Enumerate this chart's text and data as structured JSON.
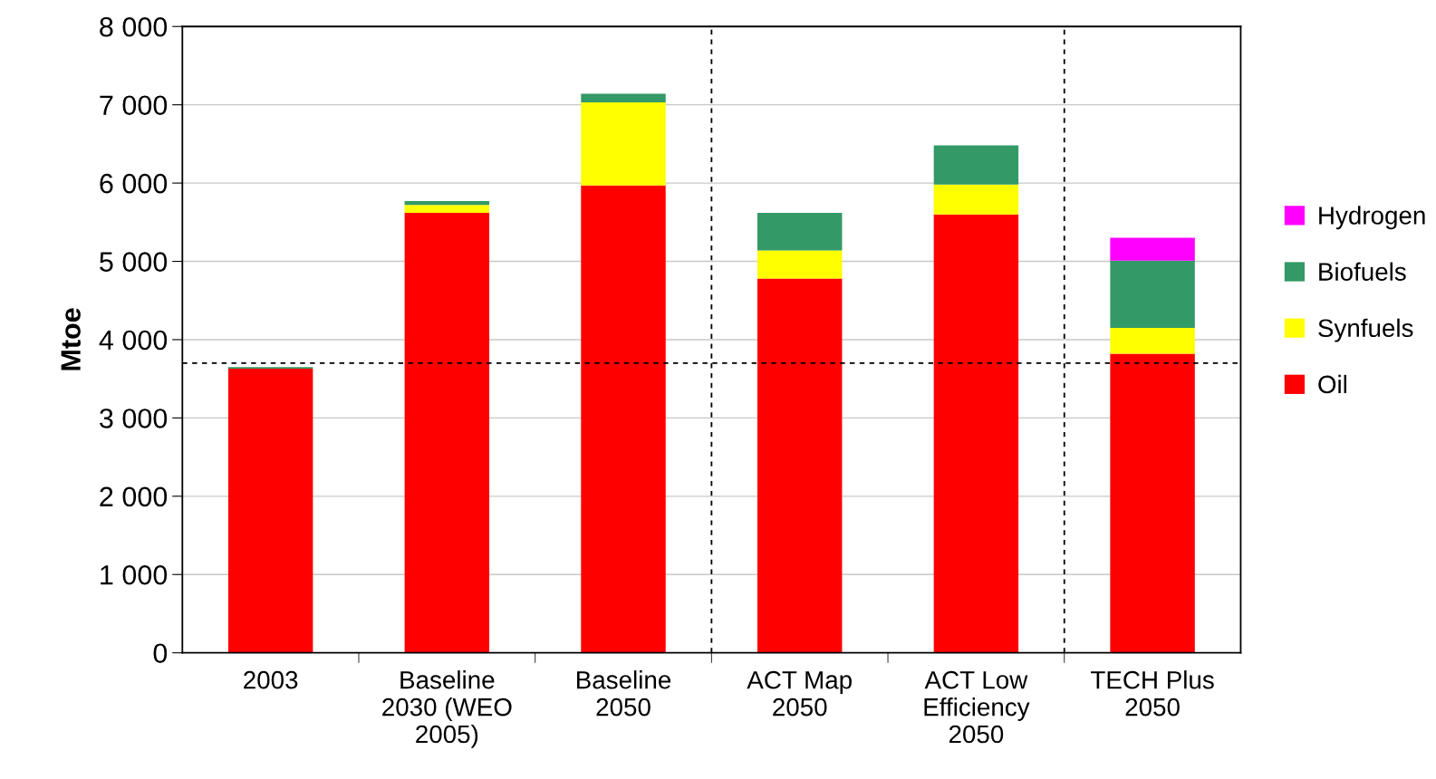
{
  "chart_data": {
    "type": "bar",
    "stacked": true,
    "ylabel": "Mtoe",
    "categories": [
      "2003",
      "Baseline\n2030 (WEO\n2005)",
      "Baseline\n2050",
      "ACT Map\n2050",
      "ACT Low\nEfficiency\n2050",
      "TECH Plus\n2050"
    ],
    "series": [
      {
        "name": "Oil",
        "color": "#ff0000",
        "values": [
          3630,
          5620,
          5970,
          4780,
          5600,
          3820
        ]
      },
      {
        "name": "Synfuels",
        "color": "#ffff00",
        "values": [
          0,
          100,
          1060,
          360,
          380,
          330
        ]
      },
      {
        "name": "Biofuels",
        "color": "#339966",
        "values": [
          20,
          50,
          110,
          480,
          500,
          860
        ]
      },
      {
        "name": "Hydrogen",
        "color": "#ff00ff",
        "values": [
          0,
          0,
          0,
          0,
          0,
          290
        ]
      }
    ],
    "ylim": [
      0,
      8000
    ],
    "yticks": [
      0,
      {
        "value": 1000,
        "label": "1 000"
      },
      {
        "value": 2000,
        "label": "2 000"
      },
      {
        "value": 3000,
        "label": "3 000"
      },
      {
        "value": 4000,
        "label": "4 000"
      },
      {
        "value": 5000,
        "label": "5 000"
      },
      {
        "value": 6000,
        "label": "6 000"
      },
      {
        "value": 7000,
        "label": "7 000"
      },
      {
        "value": 8000,
        "label": "8 000"
      }
    ],
    "grid": "y",
    "legend": "right",
    "ref_lines": [
      {
        "axis": "y",
        "value": 3700,
        "color": "#000000",
        "line_style": "dashed"
      }
    ]
  }
}
